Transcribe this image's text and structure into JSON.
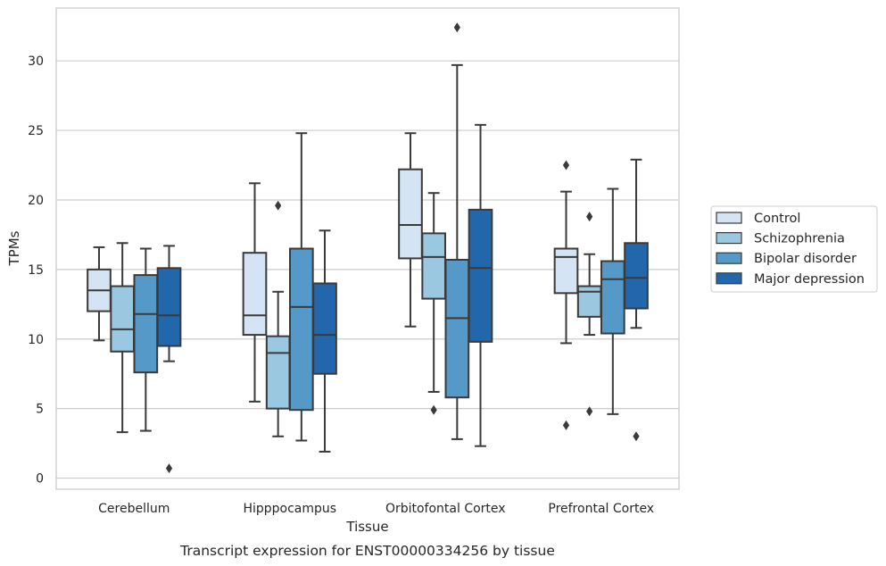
{
  "chart_data": {
    "type": "box",
    "caption": "Transcript expression for ENST00000334256 by tissue",
    "xlabel": "Tissue",
    "ylabel": "TPMs",
    "ylim": [
      -0.8,
      33.8
    ],
    "yticks": [
      0,
      5,
      10,
      15,
      20,
      25,
      30
    ],
    "grid": "horizontal",
    "legend_position": "right",
    "categories": [
      "Cerebellum",
      "Hipppocampus",
      "Orbitofontal Cortex",
      "Prefrontal Cortex"
    ],
    "series": [
      {
        "name": "Control",
        "color": "#d4e4f4",
        "boxes": [
          {
            "whislo": 9.9,
            "q1": 12.0,
            "med": 13.5,
            "q3": 15.0,
            "whishi": 16.6,
            "fliers": []
          },
          {
            "whislo": 5.5,
            "q1": 10.3,
            "med": 11.7,
            "q3": 16.2,
            "whishi": 21.2,
            "fliers": []
          },
          {
            "whislo": 10.9,
            "q1": 15.8,
            "med": 18.2,
            "q3": 22.2,
            "whishi": 24.8,
            "fliers": []
          },
          {
            "whislo": 9.7,
            "q1": 13.3,
            "med": 15.9,
            "q3": 16.5,
            "whishi": 20.6,
            "fliers": [
              22.5,
              3.8
            ]
          }
        ]
      },
      {
        "name": "Schizophrenia",
        "color": "#9ac8e0",
        "boxes": [
          {
            "whislo": 3.3,
            "q1": 9.1,
            "med": 10.7,
            "q3": 13.8,
            "whishi": 16.9,
            "fliers": []
          },
          {
            "whislo": 3.0,
            "q1": 5.0,
            "med": 9.0,
            "q3": 10.2,
            "whishi": 13.4,
            "fliers": [
              19.6
            ]
          },
          {
            "whislo": 6.2,
            "q1": 12.9,
            "med": 15.9,
            "q3": 17.6,
            "whishi": 20.5,
            "fliers": [
              4.9
            ]
          },
          {
            "whislo": 10.3,
            "q1": 11.6,
            "med": 13.4,
            "q3": 13.8,
            "whishi": 16.1,
            "fliers": [
              18.8,
              4.8
            ]
          }
        ]
      },
      {
        "name": "Bipolar disorder",
        "color": "#5599c8",
        "boxes": [
          {
            "whislo": 3.4,
            "q1": 7.6,
            "med": 11.8,
            "q3": 14.6,
            "whishi": 16.5,
            "fliers": []
          },
          {
            "whislo": 2.7,
            "q1": 4.9,
            "med": 12.3,
            "q3": 16.5,
            "whishi": 24.8,
            "fliers": []
          },
          {
            "whislo": 2.8,
            "q1": 5.8,
            "med": 11.5,
            "q3": 15.7,
            "whishi": 29.7,
            "fliers": [
              32.4
            ]
          },
          {
            "whislo": 4.6,
            "q1": 10.4,
            "med": 14.3,
            "q3": 15.6,
            "whishi": 20.8,
            "fliers": []
          }
        ]
      },
      {
        "name": "Major depression",
        "color": "#2267ac",
        "boxes": [
          {
            "whislo": 8.4,
            "q1": 9.5,
            "med": 11.7,
            "q3": 15.1,
            "whishi": 16.7,
            "fliers": [
              0.7
            ]
          },
          {
            "whislo": 1.9,
            "q1": 7.5,
            "med": 10.3,
            "q3": 14.0,
            "whishi": 17.8,
            "fliers": []
          },
          {
            "whislo": 2.3,
            "q1": 9.8,
            "med": 15.1,
            "q3": 19.3,
            "whishi": 25.4,
            "fliers": []
          },
          {
            "whislo": 10.8,
            "q1": 12.2,
            "med": 14.4,
            "q3": 16.9,
            "whishi": 22.9,
            "fliers": [
              3.0
            ]
          }
        ]
      }
    ]
  }
}
